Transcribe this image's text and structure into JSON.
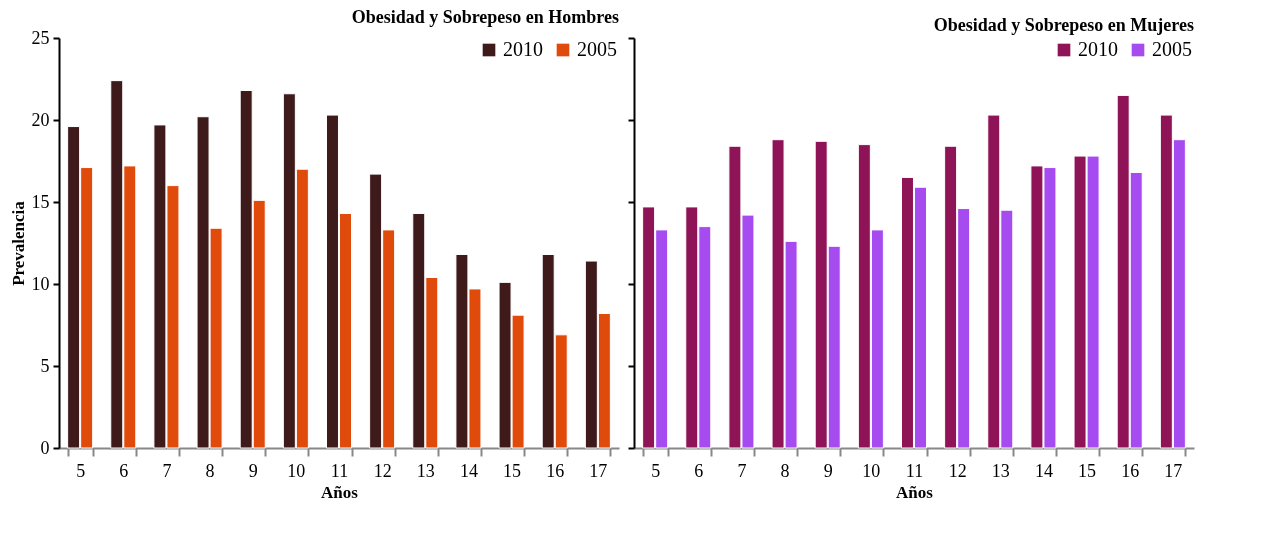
{
  "chart_data": [
    {
      "type": "bar",
      "title": "Obesidad y Sobrepeso en Hombres",
      "xlabel": "Años",
      "ylabel": "Prevalencia",
      "categories": [
        "5",
        "6",
        "7",
        "8",
        "9",
        "10",
        "11",
        "12",
        "13",
        "14",
        "15",
        "16",
        "17"
      ],
      "series": [
        {
          "name": "2010",
          "color": "#3f1a1a",
          "values": [
            19.6,
            22.4,
            19.7,
            20.2,
            21.8,
            21.6,
            20.3,
            16.7,
            14.3,
            11.8,
            10.1,
            11.8,
            11.4
          ]
        },
        {
          "name": "2005",
          "color": "#e04a0a",
          "values": [
            17.1,
            17.2,
            16.0,
            13.4,
            15.1,
            17.0,
            14.3,
            13.3,
            10.4,
            9.7,
            8.1,
            6.9,
            8.2
          ]
        }
      ],
      "ylim": [
        0,
        25
      ],
      "yticks": [
        0,
        5,
        10,
        15,
        20,
        25
      ],
      "grid": false,
      "legend": "top right"
    },
    {
      "type": "bar",
      "title": "Obesidad y Sobrepeso en Mujeres",
      "xlabel": "Años",
      "categories": [
        "5",
        "6",
        "7",
        "8",
        "9",
        "10",
        "11",
        "12",
        "13",
        "14",
        "15",
        "16",
        "17"
      ],
      "series": [
        {
          "name": "2010",
          "color": "#8e1457",
          "values": [
            14.7,
            14.7,
            18.4,
            18.8,
            18.7,
            18.5,
            16.5,
            18.4,
            20.3,
            17.2,
            17.8,
            21.5,
            20.3
          ]
        },
        {
          "name": "2005",
          "color": "#a64bf0",
          "values": [
            13.3,
            13.5,
            14.2,
            12.6,
            12.3,
            13.3,
            15.9,
            14.6,
            14.5,
            17.1,
            17.8,
            16.8,
            18.8
          ]
        }
      ],
      "ylim": [
        0,
        25
      ],
      "yticks": [
        {
          "value": 0,
          "label": null
        },
        {
          "value": 5,
          "label": null
        },
        {
          "value": 10,
          "label": null
        },
        {
          "value": 15,
          "label": null
        },
        {
          "value": 20,
          "label": null
        },
        {
          "value": 25,
          "label": null
        }
      ],
      "tick_labels": "x",
      "grid": false,
      "legend": "top right"
    }
  ]
}
